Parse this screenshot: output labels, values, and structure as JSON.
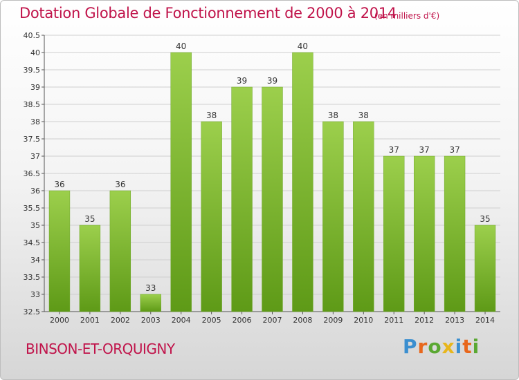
{
  "title": "Dotation Globale de Fonctionnement de 2000 à 2014",
  "subtitle": "(en milliers d'€)",
  "commune": "BINSON-ET-ORQUIGNY",
  "brand": {
    "text": "Proxiti",
    "letter_colors": [
      "#3b8fd0",
      "#e8671c",
      "#5aa832",
      "#e8b61c",
      "#3b8fd0",
      "#e8671c",
      "#5aa832"
    ]
  },
  "colors": {
    "title": "#c0134a",
    "bar_top": "#9ccf4c",
    "bar_bottom": "#5e9a17",
    "grid": "#cfcfcf"
  },
  "chart_data": {
    "type": "bar",
    "title": "Dotation Globale de Fonctionnement de 2000 à 2014",
    "subtitle": "(en milliers d'€)",
    "xlabel": "",
    "ylabel": "",
    "categories": [
      "2000",
      "2001",
      "2002",
      "2003",
      "2004",
      "2005",
      "2006",
      "2007",
      "2008",
      "2009",
      "2010",
      "2011",
      "2012",
      "2013",
      "2014"
    ],
    "values": [
      36,
      35,
      36,
      33,
      40,
      38,
      39,
      39,
      40,
      38,
      38,
      37,
      37,
      37,
      35
    ],
    "data_labels": [
      "36",
      "35",
      "36",
      "33",
      "40",
      "38",
      "39",
      "39",
      "40",
      "38",
      "38",
      "37",
      "37",
      "37",
      "35"
    ],
    "ylim": [
      32.5,
      40.5
    ],
    "yticks": [
      "32.5",
      "33",
      "33.5",
      "34",
      "34.5",
      "35",
      "35.5",
      "36",
      "36.5",
      "37",
      "37.5",
      "38",
      "38.5",
      "39",
      "39.5",
      "40",
      "40.5"
    ],
    "grid": true,
    "grid_axis": "y",
    "legend": "none"
  }
}
